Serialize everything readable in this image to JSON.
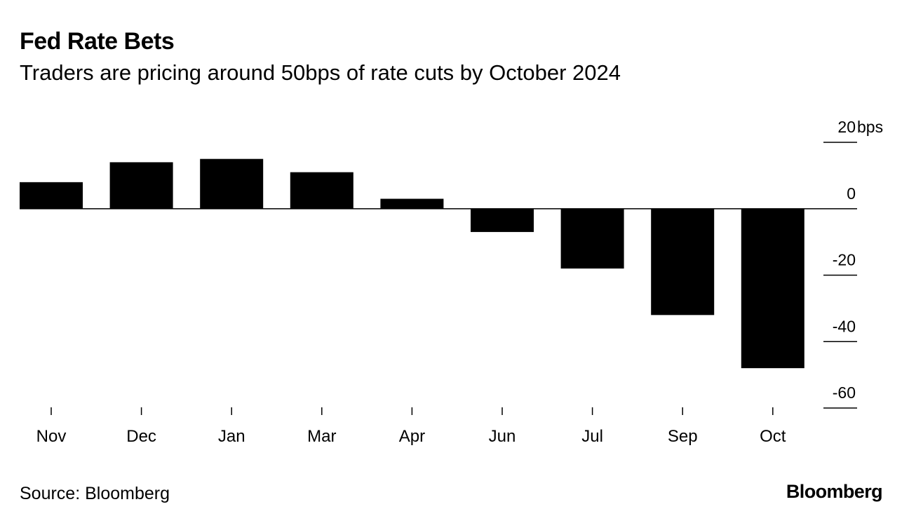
{
  "header": {
    "title": "Fed Rate Bets",
    "subtitle": "Traders are pricing around 50bps of rate cuts by October 2024"
  },
  "footer": {
    "source": "Source: Bloomberg",
    "brand": "Bloomberg"
  },
  "colors": {
    "bar": "#000000",
    "axis": "#000000",
    "background": "#ffffff"
  },
  "chart_data": {
    "type": "bar",
    "title": "Fed Rate Bets",
    "subtitle": "Traders are pricing around 50bps of rate cuts by October 2024",
    "categories": [
      "Nov",
      "Dec",
      "Jan",
      "Mar",
      "Apr",
      "Jun",
      "Jul",
      "Sep",
      "Oct"
    ],
    "values": [
      8,
      14,
      15,
      11,
      3,
      -7,
      -18,
      -32,
      -48
    ],
    "xlabel": "",
    "ylabel": "bps",
    "unit": "bps",
    "ylim": [
      -60,
      20
    ],
    "yticks": [
      20,
      0,
      -20,
      -40,
      -60
    ],
    "ytick_labels": [
      "20",
      "0",
      "-20",
      "-40",
      "-60"
    ],
    "axis_position": "right",
    "grid": false
  }
}
